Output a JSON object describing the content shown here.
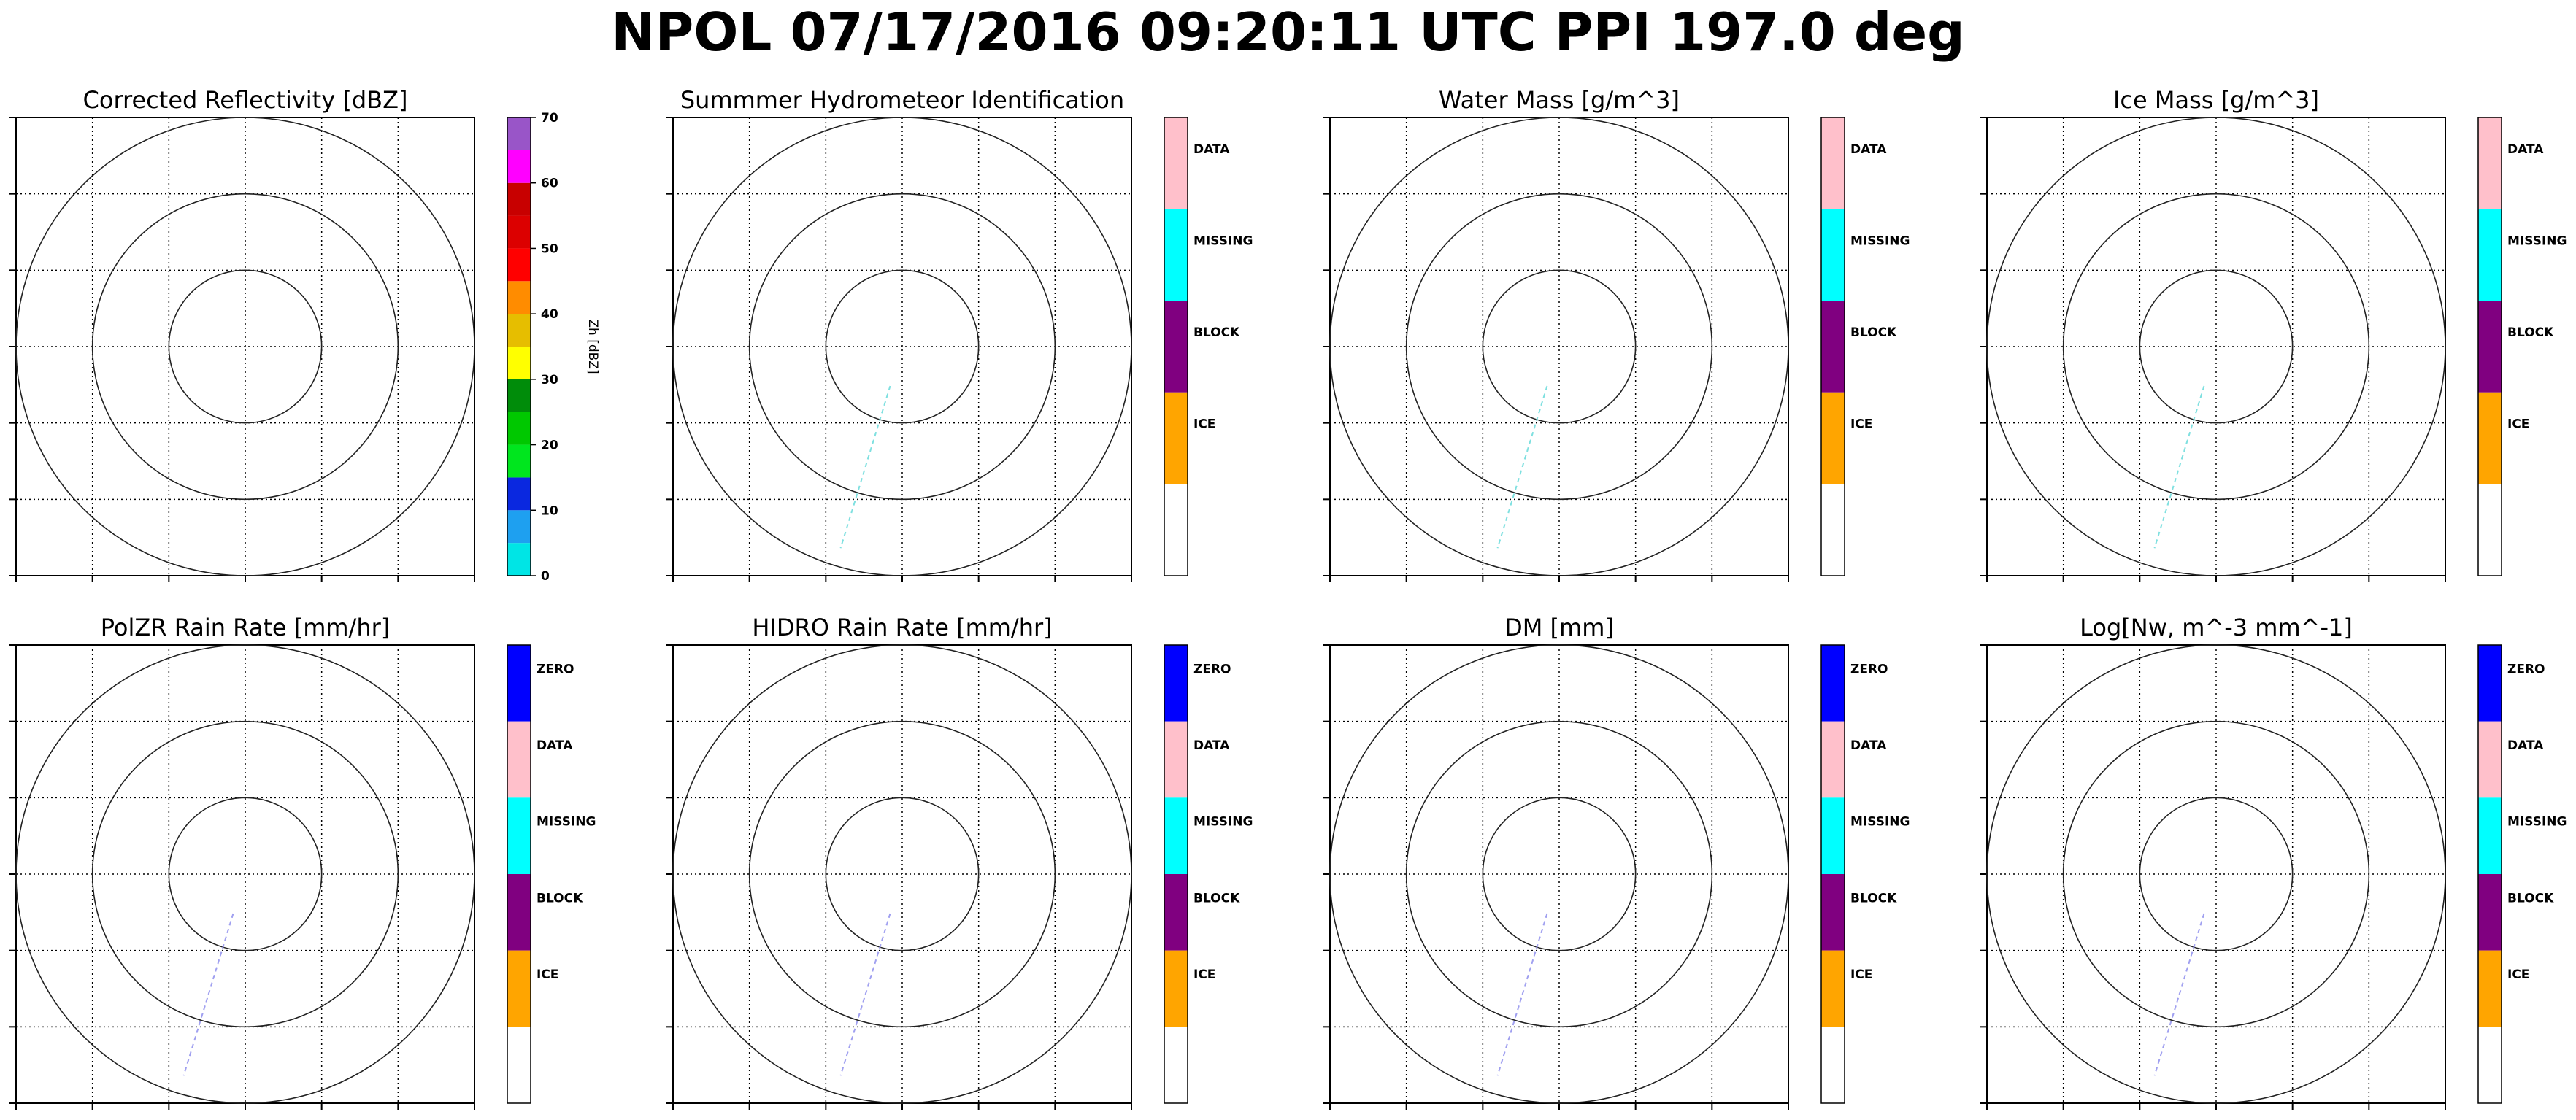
{
  "figure": {
    "title": "NPOL 07/17/2016 09:20:11 UTC PPI 197.0 deg"
  },
  "chart_data": [
    {
      "type": "ppi",
      "title": "Corrected Reflectivity [dBZ]",
      "range_rings": 3,
      "grid": true,
      "colorbar": {
        "kind": "continuous",
        "label": "Zh [dBZ]",
        "ticks": [
          "0",
          "10",
          "20",
          "30",
          "40",
          "50",
          "60",
          "70"
        ],
        "range": [
          0,
          70
        ],
        "bins": [
          {
            "from": 0,
            "to": 5,
            "color": "#00e5e5"
          },
          {
            "from": 5,
            "to": 10,
            "color": "#1ea0f0"
          },
          {
            "from": 10,
            "to": 15,
            "color": "#0a28e0"
          },
          {
            "from": 15,
            "to": 20,
            "color": "#00e61e"
          },
          {
            "from": 20,
            "to": 25,
            "color": "#00c800"
          },
          {
            "from": 25,
            "to": 30,
            "color": "#008c0a"
          },
          {
            "from": 30,
            "to": 35,
            "color": "#ffff00"
          },
          {
            "from": 35,
            "to": 40,
            "color": "#e6be00"
          },
          {
            "from": 40,
            "to": 45,
            "color": "#ff8c00"
          },
          {
            "from": 45,
            "to": 50,
            "color": "#ff0000"
          },
          {
            "from": 50,
            "to": 55,
            "color": "#dc0000"
          },
          {
            "from": 55,
            "to": 60,
            "color": "#c80000"
          },
          {
            "from": 60,
            "to": 65,
            "color": "#ff00ff"
          },
          {
            "from": 65,
            "to": 70,
            "color": "#9955c8"
          }
        ]
      },
      "radial_trace": null
    },
    {
      "type": "ppi",
      "title": "Summmer Hydrometeor Identification",
      "range_rings": 3,
      "grid": true,
      "colorbar": {
        "kind": "categorical",
        "categories": [
          {
            "label": "DATA",
            "color": "#ffc0cb"
          },
          {
            "label": "MISSING",
            "color": "#00ffff"
          },
          {
            "label": "BLOCK",
            "color": "#800080"
          },
          {
            "label": "ICE",
            "color": "#ffa500"
          },
          {
            "label": "",
            "color": "#ffffff"
          }
        ]
      },
      "radial_trace": {
        "azimuth_deg": 197,
        "color": "#7fe0e0"
      }
    },
    {
      "type": "ppi",
      "title": "Water Mass [g/m^3]",
      "range_rings": 3,
      "grid": true,
      "colorbar": {
        "kind": "categorical",
        "categories": [
          {
            "label": "DATA",
            "color": "#ffc0cb"
          },
          {
            "label": "MISSING",
            "color": "#00ffff"
          },
          {
            "label": "BLOCK",
            "color": "#800080"
          },
          {
            "label": "ICE",
            "color": "#ffa500"
          },
          {
            "label": "",
            "color": "#ffffff"
          }
        ]
      },
      "radial_trace": {
        "azimuth_deg": 197,
        "color": "#7fe0e0"
      }
    },
    {
      "type": "ppi",
      "title": "Ice Mass [g/m^3]",
      "range_rings": 3,
      "grid": true,
      "colorbar": {
        "kind": "categorical",
        "categories": [
          {
            "label": "DATA",
            "color": "#ffc0cb"
          },
          {
            "label": "MISSING",
            "color": "#00ffff"
          },
          {
            "label": "BLOCK",
            "color": "#800080"
          },
          {
            "label": "ICE",
            "color": "#ffa500"
          },
          {
            "label": "",
            "color": "#ffffff"
          }
        ]
      },
      "radial_trace": {
        "azimuth_deg": 197,
        "color": "#7fe0e0"
      }
    },
    {
      "type": "ppi",
      "title": "PolZR Rain Rate [mm/hr]",
      "range_rings": 3,
      "grid": true,
      "colorbar": {
        "kind": "categorical",
        "categories": [
          {
            "label": "ZERO",
            "color": "#0000ff"
          },
          {
            "label": "DATA",
            "color": "#ffc0cb"
          },
          {
            "label": "MISSING",
            "color": "#00ffff"
          },
          {
            "label": "BLOCK",
            "color": "#800080"
          },
          {
            "label": "ICE",
            "color": "#ffa500"
          },
          {
            "label": "",
            "color": "#ffffff"
          }
        ]
      },
      "radial_trace": {
        "azimuth_deg": 197,
        "color": "#a0a0f0"
      }
    },
    {
      "type": "ppi",
      "title": "HIDRO Rain Rate [mm/hr]",
      "range_rings": 3,
      "grid": true,
      "colorbar": {
        "kind": "categorical",
        "categories": [
          {
            "label": "ZERO",
            "color": "#0000ff"
          },
          {
            "label": "DATA",
            "color": "#ffc0cb"
          },
          {
            "label": "MISSING",
            "color": "#00ffff"
          },
          {
            "label": "BLOCK",
            "color": "#800080"
          },
          {
            "label": "ICE",
            "color": "#ffa500"
          },
          {
            "label": "",
            "color": "#ffffff"
          }
        ]
      },
      "radial_trace": {
        "azimuth_deg": 197,
        "color": "#a0a0f0"
      }
    },
    {
      "type": "ppi",
      "title": "DM [mm]",
      "range_rings": 3,
      "grid": true,
      "colorbar": {
        "kind": "categorical",
        "categories": [
          {
            "label": "ZERO",
            "color": "#0000ff"
          },
          {
            "label": "DATA",
            "color": "#ffc0cb"
          },
          {
            "label": "MISSING",
            "color": "#00ffff"
          },
          {
            "label": "BLOCK",
            "color": "#800080"
          },
          {
            "label": "ICE",
            "color": "#ffa500"
          },
          {
            "label": "",
            "color": "#ffffff"
          }
        ]
      },
      "radial_trace": {
        "azimuth_deg": 197,
        "color": "#a0a0f0"
      }
    },
    {
      "type": "ppi",
      "title": "Log[Nw, m^-3 mm^-1]",
      "range_rings": 3,
      "grid": true,
      "colorbar": {
        "kind": "categorical",
        "categories": [
          {
            "label": "ZERO",
            "color": "#0000ff"
          },
          {
            "label": "DATA",
            "color": "#ffc0cb"
          },
          {
            "label": "MISSING",
            "color": "#00ffff"
          },
          {
            "label": "BLOCK",
            "color": "#800080"
          },
          {
            "label": "ICE",
            "color": "#ffa500"
          },
          {
            "label": "",
            "color": "#ffffff"
          }
        ]
      },
      "radial_trace": {
        "azimuth_deg": 197,
        "color": "#a0a0f0"
      }
    }
  ]
}
